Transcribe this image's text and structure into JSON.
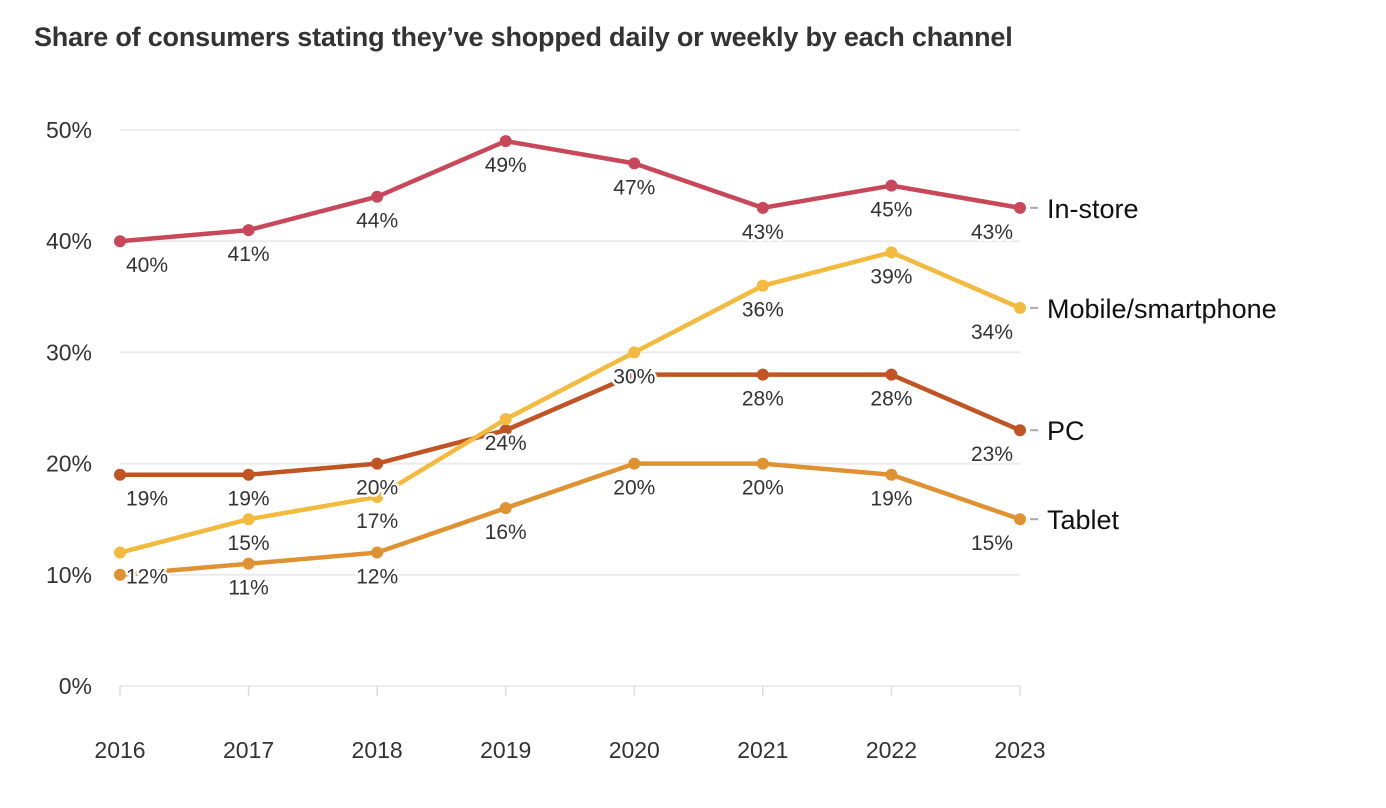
{
  "chart_data": {
    "type": "line",
    "title": "Share of consumers stating they’ve shopped daily or weekly by each channel",
    "xlabel": "",
    "ylabel": "",
    "ylim": [
      0,
      50
    ],
    "y_ticks": [
      "0%",
      "10%",
      "20%",
      "30%",
      "40%",
      "50%"
    ],
    "y_tick_values": [
      0,
      10,
      20,
      30,
      40,
      50
    ],
    "grid": true,
    "legend": "right (direct labels at line ends)",
    "x": [
      "2016",
      "2017",
      "2018",
      "2019",
      "2020",
      "2021",
      "2022",
      "2023"
    ],
    "series": [
      {
        "name": "In-store",
        "color": "#c8485a",
        "values": [
          40,
          41,
          44,
          49,
          47,
          43,
          45,
          43
        ],
        "labels": [
          "40%",
          "41%",
          "44%",
          "49%",
          "47%",
          "43%",
          "45%",
          "43%"
        ]
      },
      {
        "name": "PC",
        "color": "#c05422",
        "values": [
          19,
          19,
          20,
          23,
          28,
          28,
          28,
          23
        ],
        "labels": [
          "19%",
          "19%",
          "20%",
          null,
          null,
          "28%",
          "28%",
          "23%"
        ]
      },
      {
        "name": "Mobile/smartphone",
        "color": "#f4ba3e",
        "values": [
          12,
          15,
          17,
          24,
          30,
          36,
          39,
          34
        ],
        "labels": [
          "12%",
          "15%",
          "17%",
          "24%",
          "30%",
          "36%",
          "39%",
          "34%"
        ]
      },
      {
        "name": "Tablet",
        "color": "#e09232",
        "values": [
          10,
          11,
          12,
          16,
          20,
          20,
          19,
          15
        ],
        "labels": [
          null,
          "11%",
          "12%",
          "16%",
          "20%",
          "20%",
          "19%",
          "15%"
        ]
      }
    ]
  }
}
